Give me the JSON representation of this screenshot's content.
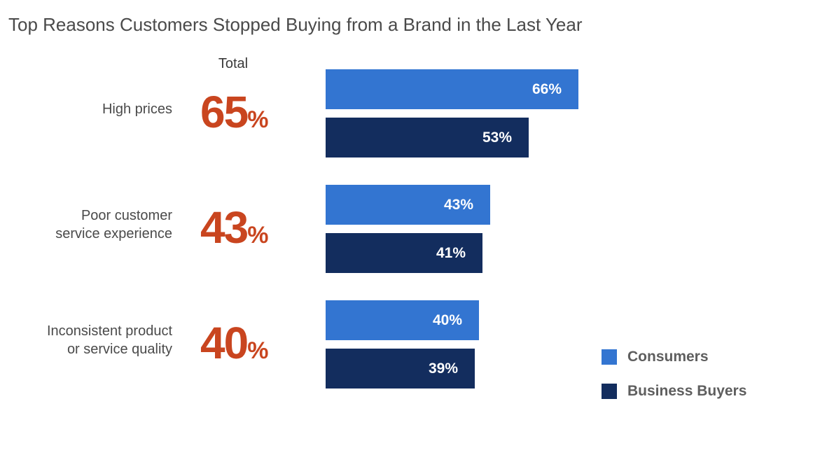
{
  "chart_data": {
    "type": "bar",
    "title": "Top Reasons Customers Stopped Buying from a Brand in the Last Year",
    "total_header": "Total",
    "categories": [
      {
        "label_lines": [
          "High prices"
        ],
        "total": "65",
        "total_suffix": "%"
      },
      {
        "label_lines": [
          "Poor customer",
          "service experience"
        ],
        "total": "43",
        "total_suffix": "%"
      },
      {
        "label_lines": [
          "Inconsistent product",
          "or service quality"
        ],
        "total": "40",
        "total_suffix": "%"
      }
    ],
    "series": [
      {
        "name": "Consumers",
        "color": "#3375d1",
        "values": [
          66,
          43,
          40
        ],
        "labels": [
          "66%",
          "43%",
          "40%"
        ]
      },
      {
        "name": "Business Buyers",
        "color": "#132d5e",
        "values": [
          53,
          41,
          39
        ],
        "labels": [
          "53%",
          "41%",
          "39%"
        ]
      }
    ],
    "legend_position": "bottom-right",
    "grid": false
  }
}
